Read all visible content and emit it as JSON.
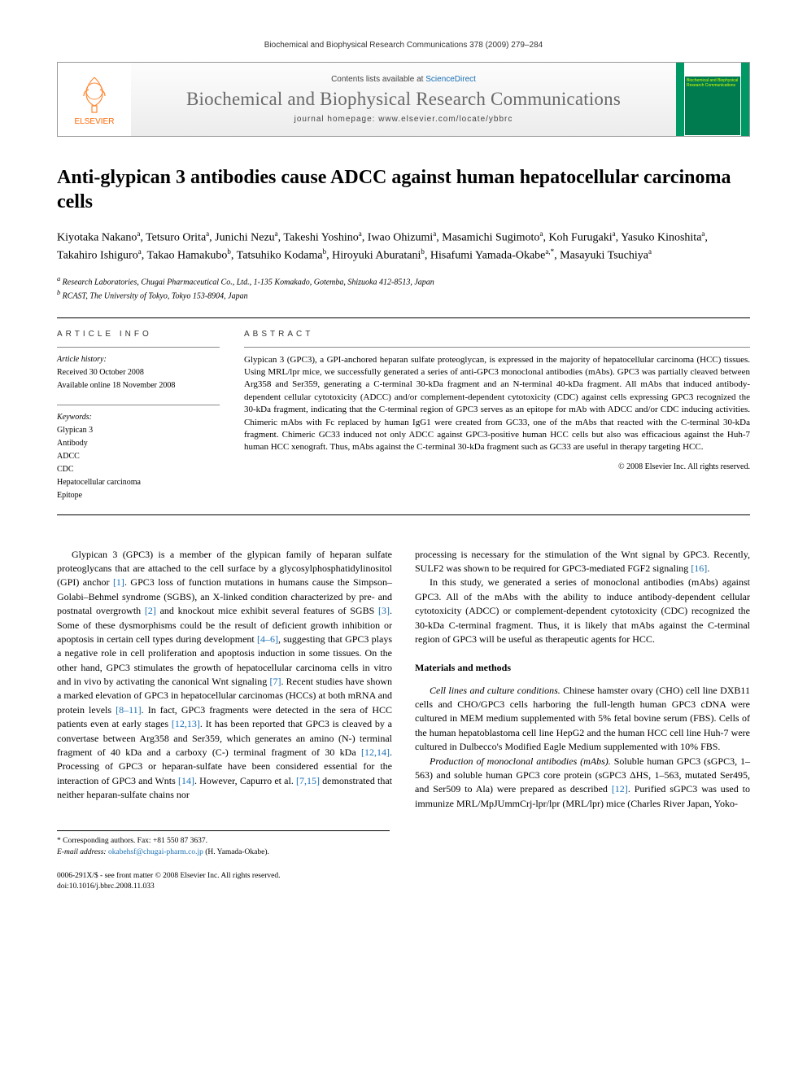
{
  "running_head": "Biochemical and Biophysical Research Communications 378 (2009) 279–284",
  "banner": {
    "contents_prefix": "Contents lists available at ",
    "contents_link": "ScienceDirect",
    "journal": "Biochemical and Biophysical Research Communications",
    "homepage_prefix": "journal homepage: ",
    "homepage_url": "www.elsevier.com/locate/ybbrc",
    "publisher": "ELSEVIER",
    "cover_label": "Biochemical and Biophysical Research Communications"
  },
  "title": "Anti-glypican 3 antibodies cause ADCC against human hepatocellular carcinoma cells",
  "authors_html": "Kiyotaka Nakano<sup>a</sup>, Tetsuro Orita<sup>a</sup>, Junichi Nezu<sup>a</sup>, Takeshi Yoshino<sup>a</sup>, Iwao Ohizumi<sup>a</sup>, Masamichi Sugimoto<sup>a</sup>, Koh Furugaki<sup>a</sup>, Yasuko Kinoshita<sup>a</sup>, Takahiro Ishiguro<sup>a</sup>, Takao Hamakubo<sup>b</sup>, Tatsuhiko Kodama<sup>b</sup>, Hiroyuki Aburatani<sup>b</sup>, Hisafumi Yamada-Okabe<sup>a,*</sup>, Masayuki Tsuchiya<sup>a</sup>",
  "affiliations": {
    "a": "Research Laboratories, Chugai Pharmaceutical Co., Ltd., 1-135 Komakado, Gotemba, Shizuoka 412-8513, Japan",
    "b": "RCAST, The University of Tokyo, Tokyo 153-8904, Japan"
  },
  "article_info": {
    "heading": "ARTICLE INFO",
    "history_label": "Article history:",
    "received": "Received 30 October 2008",
    "online": "Available online 18 November 2008",
    "keywords_label": "Keywords:",
    "keywords": [
      "Glypican 3",
      "Antibody",
      "ADCC",
      "CDC",
      "Hepatocellular carcinoma",
      "Epitope"
    ]
  },
  "abstract": {
    "heading": "ABSTRACT",
    "text": "Glypican 3 (GPC3), a GPI-anchored heparan sulfate proteoglycan, is expressed in the majority of hepatocellular carcinoma (HCC) tissues. Using MRL/lpr mice, we successfully generated a series of anti-GPC3 monoclonal antibodies (mAbs). GPC3 was partially cleaved between Arg358 and Ser359, generating a C-terminal 30-kDa fragment and an N-terminal 40-kDa fragment. All mAbs that induced antibody-dependent cellular cytotoxicity (ADCC) and/or complement-dependent cytotoxicity (CDC) against cells expressing GPC3 recognized the 30-kDa fragment, indicating that the C-terminal region of GPC3 serves as an epitope for mAb with ADCC and/or CDC inducing activities. Chimeric mAbs with Fc replaced by human IgG1 were created from GC33, one of the mAbs that reacted with the C-terminal 30-kDa fragment. Chimeric GC33 induced not only ADCC against GPC3-positive human HCC cells but also was efficacious against the Huh-7 human HCC xenograft. Thus, mAbs against the C-terminal 30-kDa fragment such as GC33 are useful in therapy targeting HCC.",
    "copyright": "© 2008 Elsevier Inc. All rights reserved."
  },
  "body": {
    "intro_p1": "Glypican 3 (GPC3) is a member of the glypican family of heparan sulfate proteoglycans that are attached to the cell surface by a glycosylphosphatidylinositol (GPI) anchor [1]. GPC3 loss of function mutations in humans cause the Simpson–Golabi–Behmel syndrome (SGBS), an X-linked condition characterized by pre- and postnatal overgrowth [2] and knockout mice exhibit several features of SGBS [3]. Some of these dysmorphisms could be the result of deficient growth inhibition or apoptosis in certain cell types during development [4–6], suggesting that GPC3 plays a negative role in cell proliferation and apoptosis induction in some tissues. On the other hand, GPC3 stimulates the growth of hepatocellular carcinoma cells in vitro and in vivo by activating the canonical Wnt signaling [7]. Recent studies have shown a marked elevation of GPC3 in hepatocellular carcinomas (HCCs) at both mRNA and protein levels [8–11]. In fact, GPC3 fragments were detected in the sera of HCC patients even at early stages [12,13]. It has been reported that GPC3 is cleaved by a convertase between Arg358 and Ser359, which generates an amino (N-) terminal fragment of 40 kDa and a carboxy (C-) terminal fragment of 30 kDa [12,14]. Processing of GPC3 or heparan-sulfate have been considered essential for the interaction of GPC3 and Wnts [14]. However, Capurro et al. [7,15] demonstrated that neither heparan-sulfate chains nor",
    "intro_p2": "processing is necessary for the stimulation of the Wnt signal by GPC3. Recently, SULF2 was shown to be required for GPC3-mediated FGF2 signaling [16].",
    "intro_p3": "In this study, we generated a series of monoclonal antibodies (mAbs) against GPC3. All of the mAbs with the ability to induce antibody-dependent cellular cytotoxicity (ADCC) or complement-dependent cytotoxicity (CDC) recognized the 30-kDa C-terminal fragment. Thus, it is likely that mAbs against the C-terminal region of GPC3 will be useful as therapeutic agents for HCC.",
    "methods_head": "Materials and methods",
    "methods_p1_lead": "Cell lines and culture conditions.",
    "methods_p1": " Chinese hamster ovary (CHO) cell line DXB11 cells and CHO/GPC3 cells harboring the full-length human GPC3 cDNA were cultured in MEM medium supplemented with 5% fetal bovine serum (FBS). Cells of the human hepatoblastoma cell line HepG2 and the human HCC cell line Huh-7 were cultured in Dulbecco's Modified Eagle Medium supplemented with 10% FBS.",
    "methods_p2_lead": "Production of monoclonal antibodies (mAbs).",
    "methods_p2": " Soluble human GPC3 (sGPC3, 1–563) and soluble human GPC3 core protein (sGPC3 ΔHS, 1–563, mutated Ser495, and Ser509 to Ala) were prepared as described [12]. Purified sGPC3 was used to immunize MRL/MpJUmmCrj-lpr/lpr (MRL/lpr) mice (Charles River Japan, Yoko-"
  },
  "corresponding": {
    "label": "* Corresponding authors. Fax: +81 550 87 3637.",
    "email_label": "E-mail address: ",
    "email": "okabehsf@chugai-pharm.co.jp",
    "email_suffix": " (H. Yamada-Okabe)."
  },
  "footer": {
    "line1": "0006-291X/$ - see front matter © 2008 Elsevier Inc. All rights reserved.",
    "line2": "doi:10.1016/j.bbrc.2008.11.033"
  },
  "colors": {
    "link": "#1a6fb3",
    "elsevier_orange": "#ff6600",
    "banner_green": "#009966"
  }
}
